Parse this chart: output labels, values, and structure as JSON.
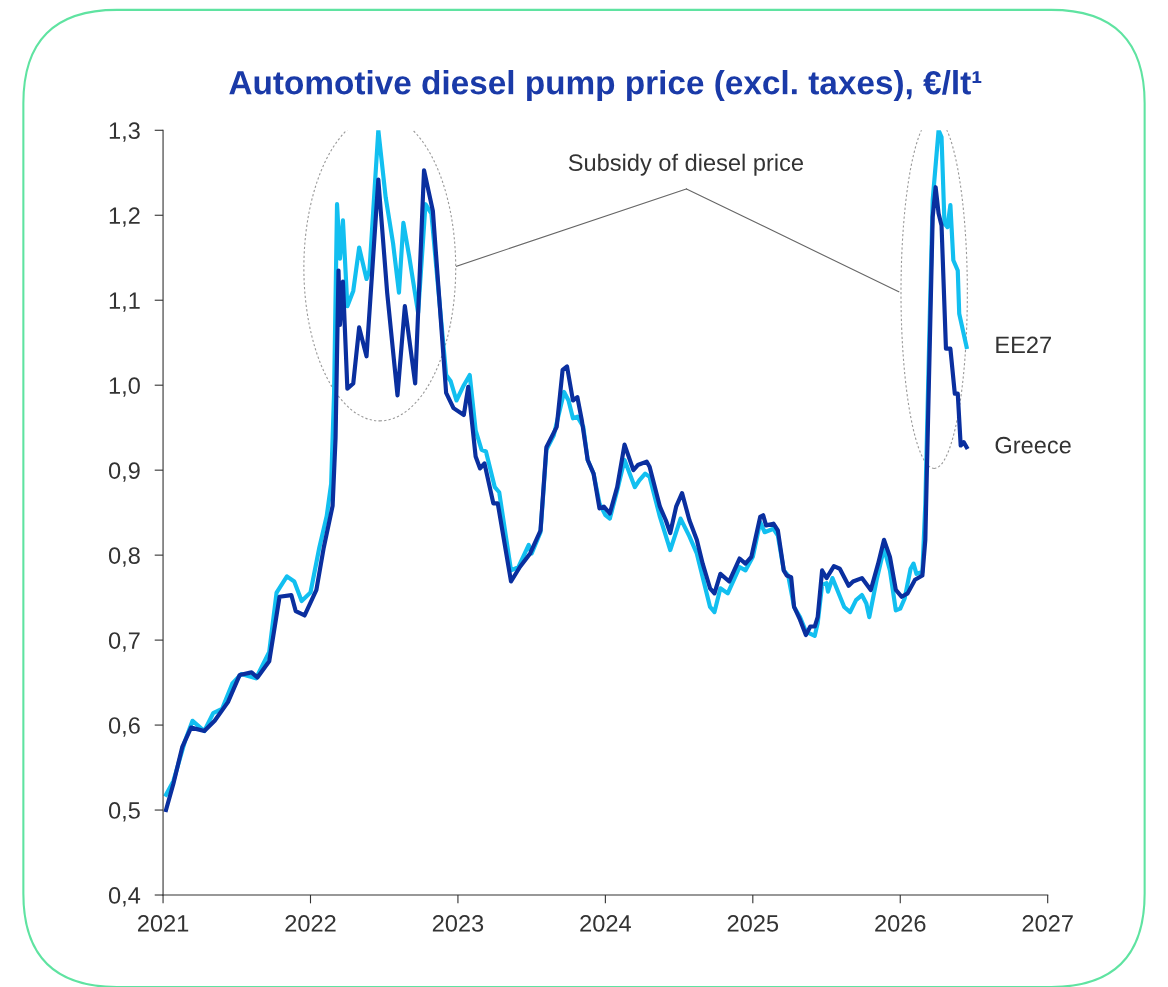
{
  "chart_data": {
    "type": "line",
    "title": "Automotive diesel pump price (excl. taxes), €/lt¹",
    "xlim": [
      2021,
      2027
    ],
    "xticks": [
      2021,
      2022,
      2023,
      2024,
      2025,
      2026,
      2027
    ],
    "ylim": [
      0.4,
      1.3
    ],
    "yticks": [
      {
        "value": 0.4,
        "label": "0,4"
      },
      {
        "value": 0.5,
        "label": "0,5"
      },
      {
        "value": 0.6,
        "label": "0,6"
      },
      {
        "value": 0.7,
        "label": "0,7"
      },
      {
        "value": 0.8,
        "label": "0,8"
      },
      {
        "value": 0.9,
        "label": "0,9"
      },
      {
        "value": 1.0,
        "label": "1,0"
      },
      {
        "value": 1.1,
        "label": "1,1"
      },
      {
        "value": 1.2,
        "label": "1,2"
      },
      {
        "value": 1.3,
        "label": "1,3"
      }
    ],
    "grid": false,
    "legend": false,
    "line_style": "solid",
    "marker": "none",
    "annotations": [
      "Subsidy of diesel price"
    ],
    "series": [
      {
        "name": "EE27",
        "color": "#12bff0",
        "x": [
          2021.02,
          2021.07,
          2021.15,
          2021.2,
          2021.28,
          2021.34,
          2021.4,
          2021.47,
          2021.53,
          2021.63,
          2021.72,
          2021.77,
          2021.84,
          2021.89,
          2021.94,
          2022.0,
          2022.06,
          2022.11,
          2022.14,
          2022.16,
          2022.18,
          2022.2,
          2022.22,
          2022.25,
          2022.29,
          2022.33,
          2022.38,
          2022.4,
          2022.46,
          2022.51,
          2022.56,
          2022.6,
          2022.63,
          2022.67,
          2022.73,
          2022.78,
          2022.82,
          2022.92,
          2022.95,
          2022.99,
          2023.04,
          2023.08,
          2023.12,
          2023.16,
          2023.19,
          2023.25,
          2023.28,
          2023.36,
          2023.41,
          2023.48,
          2023.5,
          2023.56,
          2023.6,
          2023.65,
          2023.72,
          2023.75,
          2023.78,
          2023.81,
          2023.85,
          2023.88,
          2023.92,
          2023.96,
          2024.0,
          2024.03,
          2024.08,
          2024.13,
          2024.2,
          2024.23,
          2024.27,
          2024.3,
          2024.37,
          2024.44,
          2024.51,
          2024.57,
          2024.62,
          2024.71,
          2024.74,
          2024.78,
          2024.83,
          2024.91,
          2024.95,
          2025.0,
          2025.05,
          2025.08,
          2025.14,
          2025.17,
          2025.21,
          2025.24,
          2025.28,
          2025.32,
          2025.36,
          2025.42,
          2025.44,
          2025.47,
          2025.5,
          2025.51,
          2025.54,
          2025.62,
          2025.66,
          2025.7,
          2025.74,
          2025.77,
          2025.79,
          2025.84,
          2025.89,
          2025.93,
          2025.97,
          2026.0,
          2026.03,
          2026.07,
          2026.09,
          2026.11,
          2026.15,
          2026.17,
          2026.2,
          2026.22,
          2026.26,
          2026.28,
          2026.3,
          2026.32,
          2026.34,
          2026.36,
          2026.39,
          2026.4,
          2026.45
        ],
        "values": [
          0.518,
          0.534,
          0.582,
          0.605,
          0.593,
          0.614,
          0.619,
          0.649,
          0.66,
          0.655,
          0.686,
          0.756,
          0.775,
          0.769,
          0.746,
          0.756,
          0.809,
          0.846,
          0.884,
          0.991,
          1.213,
          1.149,
          1.194,
          1.093,
          1.111,
          1.162,
          1.125,
          1.135,
          1.3,
          1.221,
          1.167,
          1.109,
          1.191,
          1.151,
          1.085,
          1.213,
          1.202,
          1.012,
          1.005,
          0.982,
          1.0,
          1.012,
          0.947,
          0.924,
          0.922,
          0.88,
          0.874,
          0.782,
          0.786,
          0.812,
          0.802,
          0.827,
          0.924,
          0.941,
          0.992,
          0.982,
          0.961,
          0.963,
          0.951,
          0.912,
          0.896,
          0.861,
          0.847,
          0.843,
          0.876,
          0.912,
          0.88,
          0.888,
          0.896,
          0.892,
          0.845,
          0.806,
          0.843,
          0.822,
          0.802,
          0.739,
          0.733,
          0.761,
          0.755,
          0.786,
          0.782,
          0.798,
          0.839,
          0.827,
          0.831,
          0.823,
          0.782,
          0.776,
          0.739,
          0.727,
          0.71,
          0.705,
          0.72,
          0.765,
          0.767,
          0.757,
          0.773,
          0.739,
          0.733,
          0.747,
          0.753,
          0.743,
          0.727,
          0.771,
          0.808,
          0.782,
          0.735,
          0.737,
          0.749,
          0.784,
          0.79,
          0.778,
          0.78,
          0.86,
          1.08,
          1.218,
          1.3,
          1.292,
          1.19,
          1.186,
          1.212,
          1.147,
          1.135,
          1.084,
          1.045
        ]
      },
      {
        "name": "Greece",
        "color": "#0a2f9f",
        "x": [
          2021.02,
          2021.07,
          2021.13,
          2021.19,
          2021.28,
          2021.35,
          2021.44,
          2021.52,
          2021.6,
          2021.64,
          2021.72,
          2021.79,
          2021.87,
          2021.9,
          2021.96,
          2022.04,
          2022.09,
          2022.15,
          2022.17,
          2022.19,
          2022.2,
          2022.22,
          2022.25,
          2022.29,
          2022.33,
          2022.38,
          2022.46,
          2022.52,
          2022.59,
          2022.64,
          2022.71,
          2022.77,
          2022.83,
          2022.92,
          2022.97,
          2023.04,
          2023.07,
          2023.12,
          2023.15,
          2023.18,
          2023.24,
          2023.27,
          2023.36,
          2023.42,
          2023.49,
          2023.56,
          2023.6,
          2023.67,
          2023.71,
          2023.74,
          2023.78,
          2023.81,
          2023.84,
          2023.88,
          2023.92,
          2023.96,
          2023.99,
          2024.03,
          2024.08,
          2024.13,
          2024.19,
          2024.22,
          2024.28,
          2024.3,
          2024.37,
          2024.41,
          2024.44,
          2024.48,
          2024.52,
          2024.57,
          2024.62,
          2024.66,
          2024.71,
          2024.74,
          2024.78,
          2024.84,
          2024.91,
          2024.95,
          2024.99,
          2025.05,
          2025.07,
          2025.09,
          2025.14,
          2025.17,
          2025.21,
          2025.23,
          2025.26,
          2025.28,
          2025.32,
          2025.36,
          2025.39,
          2025.42,
          2025.44,
          2025.47,
          2025.5,
          2025.55,
          2025.59,
          2025.65,
          2025.68,
          2025.74,
          2025.8,
          2025.85,
          2025.89,
          2025.93,
          2025.97,
          2026.01,
          2026.05,
          2026.1,
          2026.15,
          2026.17,
          2026.19,
          2026.22,
          2026.24,
          2026.26,
          2026.28,
          2026.31,
          2026.34,
          2026.37,
          2026.39,
          2026.41,
          2026.43,
          2026.45
        ],
        "values": [
          0.5,
          0.531,
          0.574,
          0.597,
          0.593,
          0.605,
          0.627,
          0.659,
          0.662,
          0.656,
          0.675,
          0.751,
          0.753,
          0.734,
          0.729,
          0.759,
          0.809,
          0.858,
          0.938,
          1.135,
          1.071,
          1.122,
          0.996,
          1.002,
          1.068,
          1.034,
          1.242,
          1.109,
          0.988,
          1.093,
          1.002,
          1.253,
          1.205,
          0.991,
          0.973,
          0.965,
          0.998,
          0.916,
          0.902,
          0.908,
          0.861,
          0.861,
          0.769,
          0.786,
          0.802,
          0.829,
          0.927,
          0.951,
          1.018,
          1.022,
          0.982,
          0.986,
          0.959,
          0.912,
          0.896,
          0.855,
          0.857,
          0.849,
          0.88,
          0.93,
          0.9,
          0.906,
          0.91,
          0.904,
          0.857,
          0.841,
          0.826,
          0.857,
          0.873,
          0.841,
          0.818,
          0.79,
          0.761,
          0.755,
          0.778,
          0.769,
          0.796,
          0.79,
          0.798,
          0.845,
          0.847,
          0.835,
          0.837,
          0.829,
          0.782,
          0.776,
          0.774,
          0.739,
          0.724,
          0.706,
          0.716,
          0.716,
          0.727,
          0.782,
          0.773,
          0.787,
          0.784,
          0.764,
          0.769,
          0.773,
          0.759,
          0.79,
          0.818,
          0.798,
          0.759,
          0.751,
          0.755,
          0.771,
          0.776,
          0.818,
          0.971,
          1.198,
          1.233,
          1.202,
          1.188,
          1.043,
          1.043,
          0.99,
          0.99,
          0.929,
          0.933,
          0.927
        ]
      }
    ]
  }
}
